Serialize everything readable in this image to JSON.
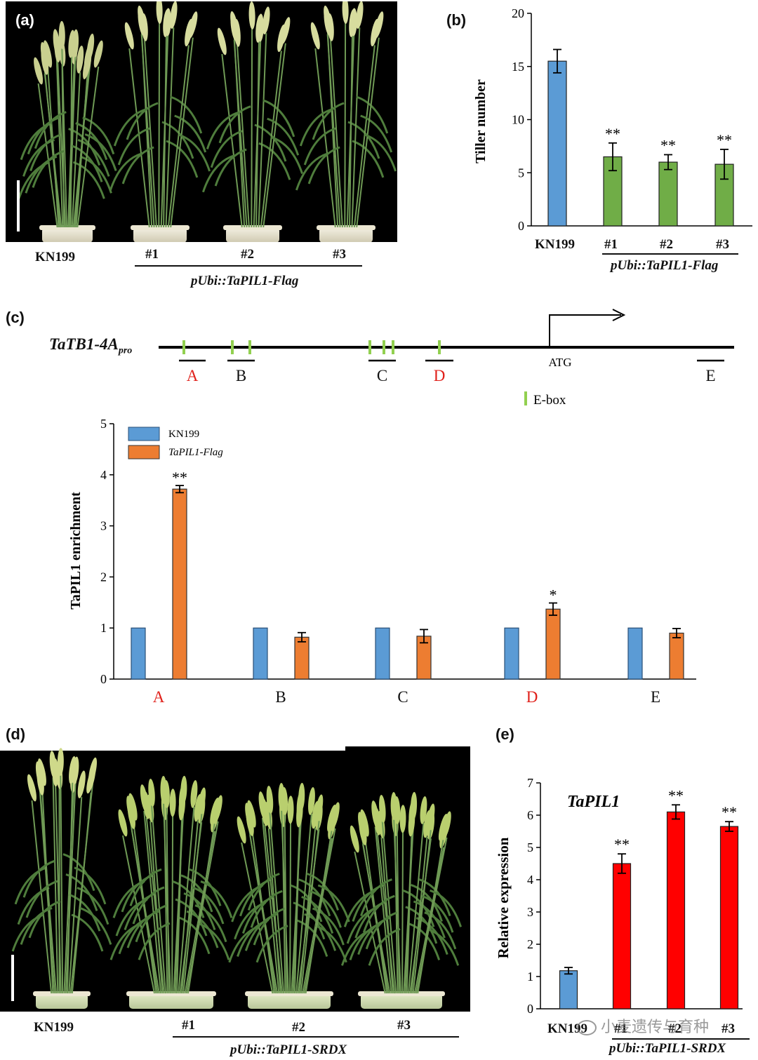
{
  "panels": {
    "a": {
      "label": "(a)",
      "control": "KN199",
      "lines": [
        "#1",
        "#2",
        "#3"
      ],
      "construct": "pUbi::TaPIL1-Flag"
    },
    "b": {
      "label": "(b)",
      "stars": [
        "**",
        "**",
        "**"
      ],
      "construct": "pUbi::TaPIL1-Flag"
    },
    "c": {
      "label": "(c)",
      "promoter_main": "TaTB1-4A",
      "promoter_sub": "pro",
      "atg": "ATG",
      "regions": [
        "A",
        "B",
        "C",
        "D",
        "E"
      ],
      "ebox_legend": "E-box",
      "stars": [
        "**",
        "",
        "",
        "*",
        ""
      ]
    },
    "d": {
      "label": "(d)",
      "control": "KN199",
      "lines": [
        "#1",
        "#2",
        "#3"
      ],
      "construct": "pUbi::TaPIL1-SRDX"
    },
    "e": {
      "label": "(e)",
      "gene": "TaPIL1",
      "stars": [
        "**",
        "**",
        "**"
      ],
      "construct": "pUbi::TaPIL1-SRDX",
      "watermark": "小麦遗传与育种"
    }
  },
  "colors": {
    "kn199": "#5b9bd5",
    "flag": "#ed7d31",
    "overexp": "#70ad47",
    "srdx": "#ff0000",
    "ebox": "#92d050",
    "highlight_text": "#e0201a"
  },
  "chart_data": [
    {
      "panel": "b",
      "type": "bar",
      "categories": [
        "KN199",
        "#1",
        "#2",
        "#3"
      ],
      "values": [
        15.5,
        6.5,
        6.0,
        5.8
      ],
      "errors": [
        1.1,
        1.3,
        0.7,
        1.4
      ],
      "ylabel": "Tiller number",
      "ylim": [
        0,
        20
      ],
      "yticks": [
        0,
        5,
        10,
        15,
        20
      ]
    },
    {
      "panel": "c",
      "type": "bar",
      "categories": [
        "A",
        "B",
        "C",
        "D",
        "E"
      ],
      "series": [
        {
          "name": "KN199",
          "values": [
            1,
            1,
            1,
            1,
            1
          ],
          "errors": [
            0,
            0,
            0,
            0,
            0
          ]
        },
        {
          "name": "TaPIL1-Flag",
          "values": [
            3.72,
            0.82,
            0.84,
            1.37,
            0.9
          ],
          "errors": [
            0.07,
            0.09,
            0.13,
            0.12,
            0.09
          ]
        }
      ],
      "ylabel": "TaPIL1 enrichment",
      "ylim": [
        0,
        5
      ],
      "yticks": [
        0,
        1,
        2,
        3,
        4,
        5
      ],
      "legend": "top-left"
    },
    {
      "panel": "e",
      "type": "bar",
      "categories": [
        "KN199",
        "#1",
        "#2",
        "#3"
      ],
      "values": [
        1.18,
        4.5,
        6.1,
        5.65
      ],
      "errors": [
        0.1,
        0.3,
        0.22,
        0.15
      ],
      "ylabel": "Relative expression",
      "ylim": [
        0,
        7
      ],
      "yticks": [
        0,
        1,
        2,
        3,
        4,
        5,
        6,
        7
      ]
    }
  ]
}
